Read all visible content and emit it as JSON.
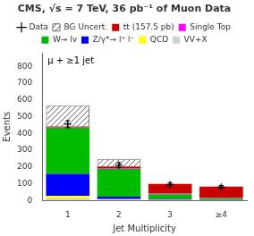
{
  "chart_data": {
    "type": "bar",
    "title": "CMS, √s = 7 TeV, 36 pb⁻¹ of Muon Data",
    "xlabel": "Jet Multiplicity",
    "ylabel": "Events",
    "annotation": "μ + ≥1 jet",
    "categories": [
      "1",
      "2",
      "3",
      "≥4"
    ],
    "stacked": true,
    "grid": false,
    "legend": "top",
    "ylim": [
      0,
      880
    ],
    "yticks": [
      0,
      100,
      200,
      300,
      400,
      500,
      600,
      700,
      800
    ],
    "series": [
      {
        "name": "VV+X",
        "color": "#d0d0d0",
        "values": [
          10,
          4,
          2,
          1
        ]
      },
      {
        "name": "QCD",
        "color": "#ffff00",
        "values": [
          18,
          4,
          2,
          1
        ]
      },
      {
        "name": "Z/γ*→ l⁺ l⁻",
        "color": "#0000ff",
        "values": [
          130,
          15,
          5,
          3
        ]
      },
      {
        "name": "W→ lv",
        "color": "#00bb00",
        "values": [
          275,
          165,
          28,
          10
        ]
      },
      {
        "name": "Single Top",
        "color": "#ff00ff",
        "values": [
          3,
          4,
          4,
          2
        ]
      },
      {
        "name": "tt (157.5 pb)",
        "color": "#cc0000",
        "values": [
          5,
          10,
          58,
          65
        ]
      },
      {
        "name": "BG Uncert.",
        "color": "#666666",
        "marker": "hatch",
        "values": [
          124,
          46,
          1,
          0
        ]
      },
      {
        "name": "Data",
        "type": "scatter",
        "color": "#000000",
        "marker": "+",
        "values": [
          455,
          210,
          95,
          80
        ],
        "errors": [
          21.3307,
          14.4914,
          9.7468,
          8.9443
        ]
      }
    ]
  }
}
